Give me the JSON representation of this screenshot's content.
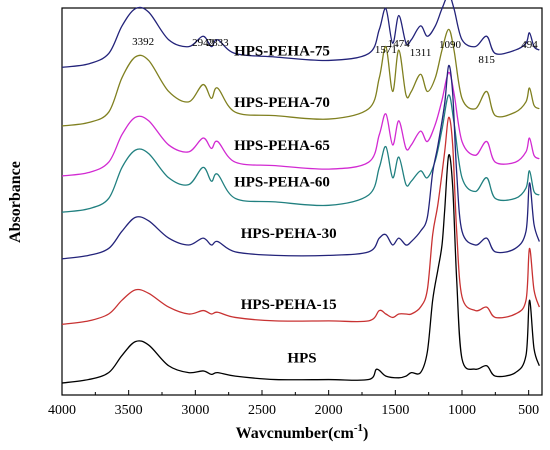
{
  "chart_data": {
    "type": "line",
    "xlabel_main": "Wavcnumber(cm",
    "xlabel_sup": "-1",
    "xlabel_close": ")",
    "ylabel": "Absorbance",
    "xlim": [
      4000,
      400
    ],
    "x_inverted": true,
    "y_ticks_shown": false,
    "grid": false,
    "x_ticks": [
      4000,
      3500,
      3000,
      2500,
      2000,
      1500,
      1000,
      500
    ],
    "x_tick_labels": [
      "4000",
      "3500",
      "3000",
      "2500",
      "2000",
      "1500",
      "1000",
      "500"
    ],
    "peak_annotations": [
      {
        "label": "3392",
        "x": 3392
      },
      {
        "label": "2942",
        "x": 2942
      },
      {
        "label": "2833",
        "x": 2833
      },
      {
        "label": "1571",
        "x": 1571
      },
      {
        "label": "1474",
        "x": 1474
      },
      {
        "label": "1311",
        "x": 1311
      },
      {
        "label": "1090",
        "x": 1090
      },
      {
        "label": "815",
        "x": 815
      },
      {
        "label": "494",
        "x": 494
      }
    ],
    "series": [
      {
        "name": "HPS-PEHA-75",
        "color": "#23237a",
        "baseline": 0.915,
        "points": [
          [
            4000,
            0
          ],
          [
            3800,
            0.01
          ],
          [
            3650,
            0.04
          ],
          [
            3550,
            0.12
          ],
          [
            3450,
            0.17
          ],
          [
            3350,
            0.16
          ],
          [
            3200,
            0.08
          ],
          [
            3050,
            0.06
          ],
          [
            2942,
            0.09
          ],
          [
            2880,
            0.06
          ],
          [
            2833,
            0.08
          ],
          [
            2700,
            0.04
          ],
          [
            2400,
            0.03
          ],
          [
            2000,
            0.02
          ],
          [
            1700,
            0.04
          ],
          [
            1620,
            0.11
          ],
          [
            1571,
            0.17
          ],
          [
            1520,
            0.07
          ],
          [
            1474,
            0.15
          ],
          [
            1420,
            0.07
          ],
          [
            1380,
            0.08
          ],
          [
            1311,
            0.12
          ],
          [
            1260,
            0.09
          ],
          [
            1200,
            0.12
          ],
          [
            1150,
            0.17
          ],
          [
            1100,
            0.21
          ],
          [
            1060,
            0.17
          ],
          [
            1000,
            0.08
          ],
          [
            900,
            0.06
          ],
          [
            815,
            0.09
          ],
          [
            750,
            0.04
          ],
          [
            600,
            0.05
          ],
          [
            520,
            0.07
          ],
          [
            494,
            0.1
          ],
          [
            460,
            0.06
          ],
          [
            420,
            0.05
          ]
        ]
      },
      {
        "name": "HPS-PEHA-70",
        "color": "#808020",
        "baseline": 0.745,
        "points": [
          [
            4000,
            0
          ],
          [
            3800,
            0.01
          ],
          [
            3650,
            0.04
          ],
          [
            3550,
            0.14
          ],
          [
            3450,
            0.2
          ],
          [
            3350,
            0.19
          ],
          [
            3200,
            0.1
          ],
          [
            3050,
            0.07
          ],
          [
            2942,
            0.12
          ],
          [
            2880,
            0.08
          ],
          [
            2833,
            0.11
          ],
          [
            2700,
            0.04
          ],
          [
            2400,
            0.03
          ],
          [
            2000,
            0.02
          ],
          [
            1700,
            0.05
          ],
          [
            1620,
            0.14
          ],
          [
            1571,
            0.23
          ],
          [
            1520,
            0.1
          ],
          [
            1474,
            0.22
          ],
          [
            1420,
            0.09
          ],
          [
            1380,
            0.1
          ],
          [
            1311,
            0.15
          ],
          [
            1260,
            0.1
          ],
          [
            1200,
            0.14
          ],
          [
            1150,
            0.22
          ],
          [
            1100,
            0.28
          ],
          [
            1060,
            0.22
          ],
          [
            1000,
            0.08
          ],
          [
            900,
            0.05
          ],
          [
            815,
            0.1
          ],
          [
            750,
            0.03
          ],
          [
            600,
            0.04
          ],
          [
            520,
            0.07
          ],
          [
            494,
            0.11
          ],
          [
            460,
            0.06
          ],
          [
            420,
            0.05
          ]
        ]
      },
      {
        "name": "HPS-PEHA-65",
        "color": "#d22ad2",
        "baseline": 0.6,
        "points": [
          [
            4000,
            0
          ],
          [
            3800,
            0.01
          ],
          [
            3650,
            0.04
          ],
          [
            3550,
            0.12
          ],
          [
            3450,
            0.17
          ],
          [
            3350,
            0.16
          ],
          [
            3200,
            0.09
          ],
          [
            3050,
            0.07
          ],
          [
            2942,
            0.11
          ],
          [
            2880,
            0.08
          ],
          [
            2833,
            0.1
          ],
          [
            2700,
            0.04
          ],
          [
            2400,
            0.03
          ],
          [
            2000,
            0.02
          ],
          [
            1700,
            0.04
          ],
          [
            1620,
            0.12
          ],
          [
            1571,
            0.18
          ],
          [
            1520,
            0.09
          ],
          [
            1474,
            0.16
          ],
          [
            1420,
            0.08
          ],
          [
            1380,
            0.09
          ],
          [
            1311,
            0.13
          ],
          [
            1260,
            0.1
          ],
          [
            1200,
            0.15
          ],
          [
            1150,
            0.22
          ],
          [
            1100,
            0.3
          ],
          [
            1060,
            0.24
          ],
          [
            1000,
            0.1
          ],
          [
            900,
            0.06
          ],
          [
            815,
            0.1
          ],
          [
            750,
            0.04
          ],
          [
            600,
            0.04
          ],
          [
            520,
            0.07
          ],
          [
            494,
            0.11
          ],
          [
            460,
            0.06
          ],
          [
            420,
            0.05
          ]
        ]
      },
      {
        "name": "HPS-PEHA-60",
        "color": "#218080",
        "baseline": 0.495,
        "points": [
          [
            4000,
            0
          ],
          [
            3800,
            0.01
          ],
          [
            3650,
            0.04
          ],
          [
            3550,
            0.13
          ],
          [
            3450,
            0.18
          ],
          [
            3350,
            0.17
          ],
          [
            3200,
            0.1
          ],
          [
            3050,
            0.08
          ],
          [
            2942,
            0.13
          ],
          [
            2880,
            0.09
          ],
          [
            2833,
            0.11
          ],
          [
            2700,
            0.04
          ],
          [
            2400,
            0.03
          ],
          [
            2000,
            0.02
          ],
          [
            1700,
            0.05
          ],
          [
            1620,
            0.13
          ],
          [
            1571,
            0.19
          ],
          [
            1520,
            0.1
          ],
          [
            1474,
            0.16
          ],
          [
            1420,
            0.08
          ],
          [
            1380,
            0.09
          ],
          [
            1311,
            0.12
          ],
          [
            1260,
            0.1
          ],
          [
            1200,
            0.15
          ],
          [
            1150,
            0.24
          ],
          [
            1100,
            0.34
          ],
          [
            1060,
            0.26
          ],
          [
            1000,
            0.1
          ],
          [
            900,
            0.06
          ],
          [
            815,
            0.1
          ],
          [
            750,
            0.04
          ],
          [
            600,
            0.04
          ],
          [
            520,
            0.07
          ],
          [
            494,
            0.12
          ],
          [
            460,
            0.06
          ],
          [
            420,
            0.05
          ]
        ]
      },
      {
        "name": "HPS-PEHA-30",
        "color": "#23237a",
        "baseline": 0.36,
        "points": [
          [
            4000,
            0
          ],
          [
            3800,
            0.01
          ],
          [
            3650,
            0.03
          ],
          [
            3550,
            0.08
          ],
          [
            3450,
            0.12
          ],
          [
            3350,
            0.11
          ],
          [
            3200,
            0.06
          ],
          [
            3050,
            0.04
          ],
          [
            2942,
            0.06
          ],
          [
            2880,
            0.04
          ],
          [
            2833,
            0.05
          ],
          [
            2700,
            0.02
          ],
          [
            2400,
            0.01
          ],
          [
            2000,
            0.01
          ],
          [
            1700,
            0.02
          ],
          [
            1620,
            0.06
          ],
          [
            1571,
            0.07
          ],
          [
            1520,
            0.04
          ],
          [
            1474,
            0.06
          ],
          [
            1420,
            0.04
          ],
          [
            1380,
            0.05
          ],
          [
            1311,
            0.08
          ],
          [
            1260,
            0.12
          ],
          [
            1220,
            0.25
          ],
          [
            1180,
            0.33
          ],
          [
            1130,
            0.45
          ],
          [
            1100,
            0.56
          ],
          [
            1070,
            0.48
          ],
          [
            1040,
            0.25
          ],
          [
            1000,
            0.08
          ],
          [
            900,
            0.04
          ],
          [
            815,
            0.06
          ],
          [
            750,
            0.02
          ],
          [
            600,
            0.03
          ],
          [
            520,
            0.08
          ],
          [
            494,
            0.22
          ],
          [
            460,
            0.1
          ],
          [
            420,
            0.05
          ]
        ]
      },
      {
        "name": "HPS-PEHA-15",
        "color": "#c83232",
        "baseline": 0.17,
        "points": [
          [
            4000,
            0
          ],
          [
            3800,
            0.01
          ],
          [
            3650,
            0.03
          ],
          [
            3550,
            0.07
          ],
          [
            3450,
            0.1
          ],
          [
            3350,
            0.09
          ],
          [
            3200,
            0.05
          ],
          [
            3050,
            0.03
          ],
          [
            2942,
            0.04
          ],
          [
            2880,
            0.03
          ],
          [
            2833,
            0.035
          ],
          [
            2700,
            0.02
          ],
          [
            2400,
            0.01
          ],
          [
            2000,
            0.01
          ],
          [
            1700,
            0.01
          ],
          [
            1620,
            0.04
          ],
          [
            1571,
            0.03
          ],
          [
            1520,
            0.02
          ],
          [
            1474,
            0.03
          ],
          [
            1420,
            0.03
          ],
          [
            1380,
            0.03
          ],
          [
            1311,
            0.05
          ],
          [
            1260,
            0.1
          ],
          [
            1220,
            0.26
          ],
          [
            1180,
            0.35
          ],
          [
            1130,
            0.5
          ],
          [
            1100,
            0.6
          ],
          [
            1070,
            0.52
          ],
          [
            1040,
            0.27
          ],
          [
            1000,
            0.08
          ],
          [
            900,
            0.04
          ],
          [
            815,
            0.05
          ],
          [
            750,
            0.02
          ],
          [
            600,
            0.03
          ],
          [
            520,
            0.07
          ],
          [
            494,
            0.22
          ],
          [
            460,
            0.1
          ],
          [
            420,
            0.05
          ]
        ]
      },
      {
        "name": "HPS",
        "color": "#000000",
        "baseline": 0.0,
        "points": [
          [
            4000,
            0
          ],
          [
            3800,
            0.01
          ],
          [
            3650,
            0.03
          ],
          [
            3550,
            0.08
          ],
          [
            3450,
            0.12
          ],
          [
            3350,
            0.11
          ],
          [
            3200,
            0.05
          ],
          [
            3050,
            0.03
          ],
          [
            2942,
            0.035
          ],
          [
            2880,
            0.025
          ],
          [
            2833,
            0.03
          ],
          [
            2700,
            0.02
          ],
          [
            2400,
            0.01
          ],
          [
            2000,
            0.01
          ],
          [
            1700,
            0.01
          ],
          [
            1640,
            0.04
          ],
          [
            1571,
            0.02
          ],
          [
            1474,
            0.015
          ],
          [
            1420,
            0.02
          ],
          [
            1380,
            0.03
          ],
          [
            1311,
            0.03
          ],
          [
            1260,
            0.09
          ],
          [
            1220,
            0.24
          ],
          [
            1180,
            0.33
          ],
          [
            1150,
            0.4
          ],
          [
            1130,
            0.5
          ],
          [
            1100,
            0.66
          ],
          [
            1070,
            0.57
          ],
          [
            1040,
            0.3
          ],
          [
            1000,
            0.07
          ],
          [
            900,
            0.04
          ],
          [
            815,
            0.05
          ],
          [
            750,
            0.02
          ],
          [
            600,
            0.03
          ],
          [
            520,
            0.08
          ],
          [
            494,
            0.24
          ],
          [
            460,
            0.1
          ],
          [
            420,
            0.05
          ]
        ]
      }
    ]
  }
}
